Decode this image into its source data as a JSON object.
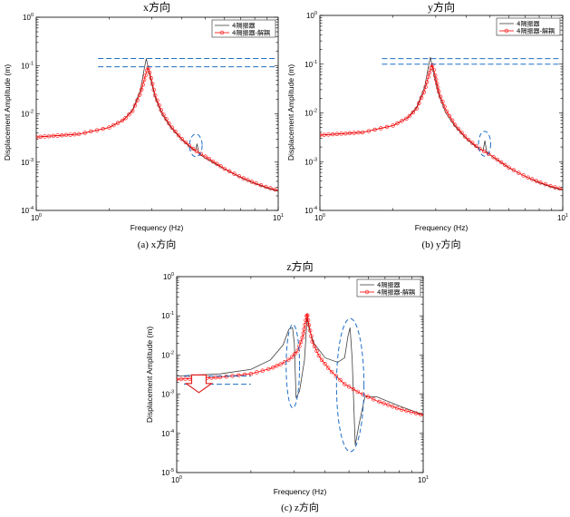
{
  "figure": {
    "colors": {
      "series1": "#404040",
      "series2": "#ff0000",
      "annotation": "#1f6fc5",
      "arrow": "#e02020"
    }
  },
  "chart_data": [
    {
      "id": "x",
      "type": "line",
      "title": "x方向",
      "caption": "(a) x方向",
      "xlabel": "Frequency (Hz)",
      "ylabel": "Displacement Amplitude (m)",
      "xscale": "log",
      "yscale": "log",
      "xlim": [
        1,
        10
      ],
      "ylim": [
        0.0001,
        1
      ],
      "xticks": [
        {
          "v": 1,
          "b": "10",
          "e": "0"
        },
        {
          "v": 10,
          "b": "10",
          "e": "1"
        }
      ],
      "yticks": [
        {
          "v": 0.0001,
          "b": "10",
          "e": "-4"
        },
        {
          "v": 0.001,
          "b": "10",
          "e": "-3"
        },
        {
          "v": 0.01,
          "b": "10",
          "e": "-2"
        },
        {
          "v": 0.1,
          "b": "10",
          "e": "-1"
        },
        {
          "v": 1,
          "b": "10",
          "e": "0"
        }
      ],
      "legend": [
        "4隔振器",
        "4隔振器-解耦"
      ],
      "legend_position": "top-right",
      "series": [
        {
          "name": "4隔振器",
          "style": "line",
          "x": [
            1.0,
            1.5,
            2.0,
            2.3,
            2.5,
            2.7,
            2.8,
            2.85,
            2.95,
            3.1,
            3.3,
            3.6,
            4.0,
            4.4,
            4.55,
            4.62,
            4.7,
            5.0,
            6.0,
            7.0,
            8.0,
            9.0,
            10.0
          ],
          "y": [
            0.0033,
            0.0038,
            0.0052,
            0.0076,
            0.012,
            0.032,
            0.09,
            0.14,
            0.06,
            0.022,
            0.01,
            0.0052,
            0.0029,
            0.0019,
            0.0017,
            0.0024,
            0.0015,
            0.0012,
            0.00072,
            0.00048,
            0.00036,
            0.00029,
            0.00025
          ]
        },
        {
          "name": "4隔振器-解耦",
          "style": "circle-line",
          "x": [
            1.0,
            1.5,
            2.0,
            2.3,
            2.5,
            2.7,
            2.82,
            2.9,
            2.97,
            3.1,
            3.3,
            3.6,
            4.0,
            4.5,
            5.0,
            6.0,
            7.0,
            8.0,
            9.0,
            10.0
          ],
          "y": [
            0.0033,
            0.0038,
            0.0052,
            0.0075,
            0.0115,
            0.027,
            0.06,
            0.094,
            0.06,
            0.024,
            0.011,
            0.0055,
            0.003,
            0.0018,
            0.0013,
            0.00073,
            0.00049,
            0.00037,
            0.0003,
            0.00026
          ]
        }
      ],
      "annotations": {
        "dashed_levels": [
          0.14,
          0.094
        ],
        "dashed_x_range": [
          1.8,
          10
        ],
        "ellipse": {
          "x_center": 4.55,
          "y_center": 0.0022,
          "x_range": [
            4.3,
            4.85
          ],
          "y_range": [
            0.0013,
            0.0038
          ]
        }
      }
    },
    {
      "id": "y",
      "type": "line",
      "title": "y方向",
      "caption": "(b) y方向",
      "xlabel": "Frequency (Hz)",
      "ylabel": "Displacement Amplitude (m)",
      "xscale": "log",
      "yscale": "log",
      "xlim": [
        1,
        10
      ],
      "ylim": [
        0.0001,
        1
      ],
      "xticks": [
        {
          "v": 1,
          "b": "10",
          "e": "0"
        },
        {
          "v": 10,
          "b": "10",
          "e": "1"
        }
      ],
      "yticks": [
        {
          "v": 0.0001,
          "b": "10",
          "e": "-4"
        },
        {
          "v": 0.001,
          "b": "10",
          "e": "-3"
        },
        {
          "v": 0.01,
          "b": "10",
          "e": "-2"
        },
        {
          "v": 0.1,
          "b": "10",
          "e": "-1"
        },
        {
          "v": 1,
          "b": "10",
          "e": "0"
        }
      ],
      "legend": [
        "4隔振器",
        "4隔振器-解耦"
      ],
      "legend_position": "top-right",
      "series": [
        {
          "name": "4隔振器",
          "style": "line",
          "x": [
            1.0,
            1.5,
            2.0,
            2.3,
            2.5,
            2.7,
            2.8,
            2.85,
            2.95,
            3.1,
            3.3,
            3.6,
            4.0,
            4.4,
            4.7,
            4.78,
            4.86,
            5.2,
            6.0,
            7.0,
            8.0,
            9.0,
            10.0
          ],
          "y": [
            0.0035,
            0.004,
            0.0055,
            0.008,
            0.013,
            0.034,
            0.09,
            0.14,
            0.06,
            0.022,
            0.01,
            0.0053,
            0.003,
            0.002,
            0.0017,
            0.0027,
            0.0016,
            0.0012,
            0.00075,
            0.0005,
            0.00037,
            0.0003,
            0.00026
          ]
        },
        {
          "name": "4隔振器-解耦",
          "style": "circle-line",
          "x": [
            1.0,
            1.5,
            2.0,
            2.3,
            2.5,
            2.7,
            2.82,
            2.9,
            2.97,
            3.1,
            3.3,
            3.6,
            4.0,
            4.5,
            5.0,
            6.0,
            7.0,
            8.0,
            9.0,
            10.0
          ],
          "y": [
            0.0035,
            0.004,
            0.0055,
            0.0079,
            0.0122,
            0.029,
            0.064,
            0.1,
            0.064,
            0.025,
            0.0115,
            0.0057,
            0.0031,
            0.0019,
            0.0014,
            0.00076,
            0.0005,
            0.00038,
            0.00031,
            0.00027
          ]
        }
      ],
      "annotations": {
        "dashed_levels": [
          0.13,
          0.1
        ],
        "dashed_x_range": [
          1.8,
          10
        ],
        "ellipse": {
          "x_center": 4.75,
          "y_center": 0.0024,
          "x_range": [
            4.5,
            5.05
          ],
          "y_range": [
            0.0013,
            0.0042
          ]
        }
      }
    },
    {
      "id": "z",
      "type": "line",
      "title": "z方向",
      "caption": "(c) z方向",
      "xlabel": "Frequency (Hz)",
      "ylabel": "Displacement Amplitude (m)",
      "xscale": "log",
      "yscale": "log",
      "xlim": [
        1,
        10
      ],
      "ylim": [
        1e-05,
        1
      ],
      "xticks": [
        {
          "v": 1,
          "b": "10",
          "e": "0"
        },
        {
          "v": 10,
          "b": "10",
          "e": "1"
        }
      ],
      "yticks": [
        {
          "v": 1e-05,
          "b": "10",
          "e": "-5"
        },
        {
          "v": 0.0001,
          "b": "10",
          "e": "-4"
        },
        {
          "v": 0.001,
          "b": "10",
          "e": "-3"
        },
        {
          "v": 0.01,
          "b": "10",
          "e": "-2"
        },
        {
          "v": 0.1,
          "b": "10",
          "e": "-1"
        },
        {
          "v": 1,
          "b": "10",
          "e": "0"
        }
      ],
      "legend": [
        "4隔振器",
        "4隔振器-解耦"
      ],
      "legend_position": "top-right",
      "series": [
        {
          "name": "4隔振器",
          "style": "line",
          "x": [
            1.0,
            1.5,
            2.0,
            2.4,
            2.7,
            2.85,
            2.95,
            3.0,
            3.05,
            3.15,
            3.3,
            3.38,
            3.45,
            3.6,
            4.0,
            4.5,
            4.8,
            4.95,
            5.05,
            5.15,
            5.3,
            5.5,
            5.8,
            6.5,
            8.0,
            10.0
          ],
          "y": [
            0.0029,
            0.0033,
            0.0043,
            0.0075,
            0.018,
            0.045,
            0.05,
            0.02,
            0.0008,
            0.0012,
            0.0075,
            0.09,
            0.045,
            0.02,
            0.0085,
            0.0065,
            0.0085,
            0.03,
            0.05,
            0.008,
            5e-05,
            0.00018,
            0.00085,
            0.00085,
            0.0005,
            0.0003
          ]
        },
        {
          "name": "4隔振器-解耦",
          "style": "circle-line",
          "x": [
            1.0,
            1.5,
            2.0,
            2.4,
            2.7,
            2.9,
            3.1,
            3.25,
            3.33,
            3.38,
            3.43,
            3.55,
            3.8,
            4.2,
            4.8,
            5.5,
            6.5,
            8.0,
            10.0
          ],
          "y": [
            0.0024,
            0.0027,
            0.0033,
            0.0045,
            0.0062,
            0.0082,
            0.013,
            0.03,
            0.07,
            0.115,
            0.065,
            0.022,
            0.0088,
            0.004,
            0.0018,
            0.0011,
            0.00067,
            0.00042,
            0.00029
          ]
        }
      ],
      "annotations": {
        "dashed_levels": [
          0.0029,
          0.0018
        ],
        "dashed_x_range": [
          1.0,
          2.0
        ],
        "arrow": {
          "x": 1.23,
          "y_from": 0.0031,
          "y_to": 0.0011
        },
        "ellipses": [
          {
            "x_center": 2.95,
            "y_center": 0.0063,
            "x_range": [
              2.78,
              3.15
            ],
            "y_range": [
              0.00045,
              0.06
            ]
          },
          {
            "x_center": 5.05,
            "y_center": 0.0018,
            "x_range": [
              4.45,
              5.75
            ],
            "y_range": [
              3.4e-05,
              0.085
            ]
          }
        ]
      }
    }
  ]
}
